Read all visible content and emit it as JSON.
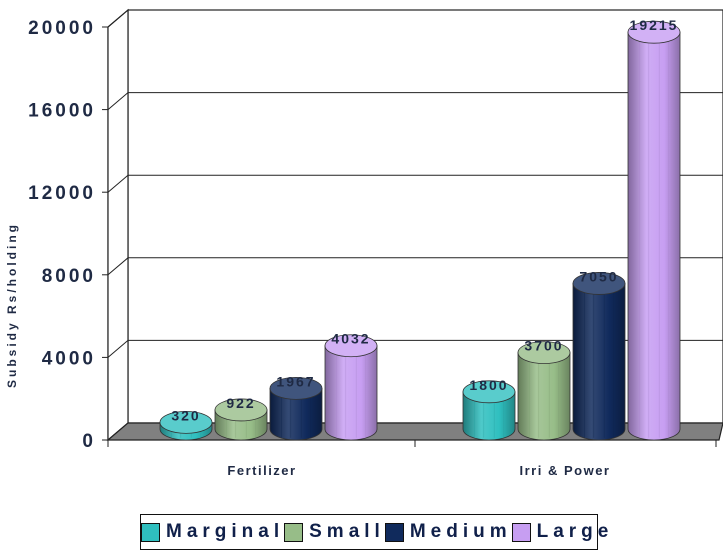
{
  "chart_data": {
    "type": "bar",
    "style": "3d-cylinder",
    "categories": [
      "Fertilizer",
      "Irri & Power"
    ],
    "series": [
      {
        "name": "Marginal",
        "color": "#2fbfbf",
        "values": [
          320,
          1800
        ],
        "labels": [
          "320",
          "1800"
        ]
      },
      {
        "name": "Small",
        "color": "#97bd88",
        "values": [
          922,
          3700
        ],
        "labels": [
          "922",
          "3700"
        ]
      },
      {
        "name": "Medium",
        "color": "#102a5c",
        "values": [
          1967,
          7050
        ],
        "labels": [
          "1967",
          "7050"
        ]
      },
      {
        "name": "Large",
        "color": "#c79ef2",
        "values": [
          4032,
          19215
        ],
        "labels": [
          "4032",
          "19215"
        ]
      }
    ],
    "ylabel": "Subsidy Rs/holding",
    "xlabel": "",
    "ylim": [
      0,
      20000
    ],
    "yticks": [
      "0",
      "4000",
      "8000",
      "12000",
      "16000",
      "20000"
    ],
    "grid": true,
    "legend_position": "bottom",
    "colors": {
      "floor": "#808080",
      "wall": "#ffffff",
      "text": "#1f2a44"
    }
  }
}
